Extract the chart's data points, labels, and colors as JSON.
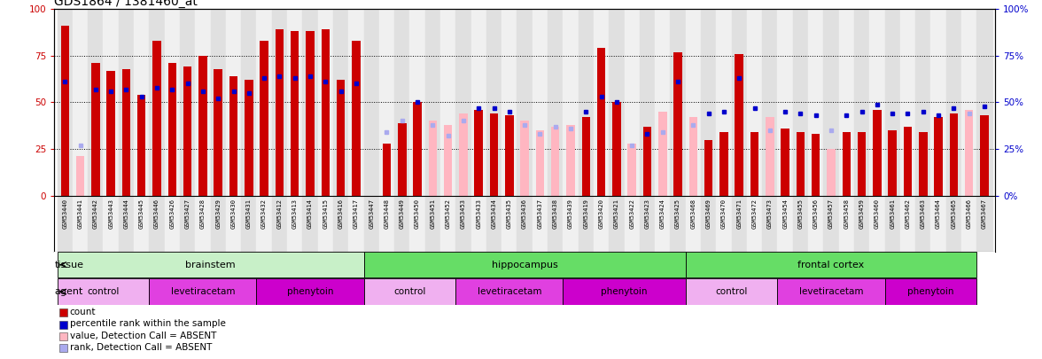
{
  "title": "GDS1864 / 1381460_at",
  "samples": [
    "GSM53440",
    "GSM53441",
    "GSM53442",
    "GSM53443",
    "GSM53444",
    "GSM53445",
    "GSM53446",
    "GSM53426",
    "GSM53427",
    "GSM53428",
    "GSM53429",
    "GSM53430",
    "GSM53431",
    "GSM53432",
    "GSM53412",
    "GSM53413",
    "GSM53414",
    "GSM53415",
    "GSM53416",
    "GSM53417",
    "GSM53447",
    "GSM53448",
    "GSM53449",
    "GSM53450",
    "GSM53451",
    "GSM53452",
    "GSM53453",
    "GSM53433",
    "GSM53434",
    "GSM53435",
    "GSM53436",
    "GSM53437",
    "GSM53438",
    "GSM53439",
    "GSM53419",
    "GSM53420",
    "GSM53421",
    "GSM53422",
    "GSM53423",
    "GSM53424",
    "GSM53425",
    "GSM53468",
    "GSM53469",
    "GSM53470",
    "GSM53471",
    "GSM53472",
    "GSM53473",
    "GSM53454",
    "GSM53455",
    "GSM53456",
    "GSM53457",
    "GSM53458",
    "GSM53459",
    "GSM53460",
    "GSM53461",
    "GSM53462",
    "GSM53463",
    "GSM53464",
    "GSM53465",
    "GSM53466",
    "GSM53467"
  ],
  "count_values": [
    91,
    0,
    71,
    67,
    68,
    54,
    83,
    71,
    69,
    75,
    68,
    64,
    62,
    83,
    89,
    88,
    88,
    89,
    62,
    83,
    0,
    28,
    39,
    50,
    0,
    0,
    0,
    46,
    44,
    43,
    0,
    0,
    0,
    0,
    42,
    79,
    50,
    0,
    37,
    0,
    77,
    0,
    30,
    34,
    76,
    34,
    0,
    36,
    34,
    33,
    0,
    34,
    34,
    46,
    35,
    37,
    34,
    42,
    44,
    0,
    43
  ],
  "count_absent": [
    false,
    true,
    false,
    false,
    false,
    false,
    false,
    false,
    false,
    false,
    false,
    false,
    false,
    false,
    false,
    false,
    false,
    false,
    false,
    false,
    true,
    false,
    false,
    false,
    true,
    true,
    true,
    false,
    false,
    false,
    true,
    true,
    true,
    true,
    false,
    false,
    false,
    true,
    false,
    true,
    false,
    true,
    false,
    false,
    false,
    false,
    true,
    false,
    false,
    false,
    true,
    false,
    false,
    false,
    false,
    false,
    false,
    false,
    false,
    true,
    false
  ],
  "absent_bar_values": [
    0,
    21,
    0,
    0,
    0,
    0,
    0,
    0,
    0,
    0,
    0,
    0,
    0,
    0,
    0,
    0,
    0,
    0,
    0,
    0,
    0,
    0,
    0,
    0,
    40,
    38,
    44,
    0,
    0,
    0,
    40,
    35,
    37,
    38,
    0,
    0,
    0,
    28,
    0,
    45,
    0,
    42,
    0,
    0,
    0,
    0,
    42,
    0,
    0,
    0,
    25,
    0,
    0,
    0,
    0,
    0,
    0,
    0,
    0,
    46,
    0
  ],
  "rank_values": [
    61,
    27,
    57,
    56,
    57,
    53,
    58,
    57,
    60,
    56,
    52,
    56,
    55,
    63,
    64,
    63,
    64,
    61,
    56,
    60,
    0,
    0,
    0,
    50,
    0,
    0,
    0,
    47,
    47,
    45,
    0,
    0,
    0,
    0,
    45,
    53,
    50,
    0,
    33,
    0,
    61,
    0,
    44,
    45,
    63,
    47,
    0,
    45,
    44,
    43,
    0,
    43,
    45,
    49,
    44,
    44,
    45,
    43,
    47,
    0,
    48
  ],
  "rank_absent": [
    false,
    true,
    false,
    false,
    false,
    false,
    false,
    false,
    false,
    false,
    false,
    false,
    false,
    false,
    false,
    false,
    false,
    false,
    false,
    false,
    true,
    true,
    true,
    false,
    true,
    true,
    true,
    false,
    false,
    false,
    true,
    true,
    true,
    true,
    false,
    false,
    false,
    true,
    false,
    true,
    false,
    true,
    false,
    false,
    false,
    false,
    true,
    false,
    false,
    false,
    true,
    false,
    false,
    false,
    false,
    false,
    false,
    false,
    false,
    true,
    false
  ],
  "absent_rank_values": [
    0,
    27,
    0,
    0,
    0,
    0,
    0,
    0,
    0,
    0,
    0,
    0,
    0,
    0,
    0,
    0,
    0,
    0,
    0,
    0,
    0,
    34,
    40,
    0,
    38,
    32,
    40,
    0,
    0,
    0,
    38,
    33,
    37,
    36,
    0,
    0,
    0,
    27,
    0,
    34,
    0,
    38,
    0,
    0,
    0,
    0,
    35,
    0,
    0,
    0,
    35,
    0,
    0,
    0,
    0,
    0,
    0,
    0,
    0,
    44,
    0
  ],
  "tissue_groups": [
    {
      "label": "brainstem",
      "start": 0,
      "end": 20,
      "color": "#c8f0c8"
    },
    {
      "label": "hippocampus",
      "start": 20,
      "end": 41,
      "color": "#66dd66"
    },
    {
      "label": "frontal cortex",
      "start": 41,
      "end": 60,
      "color": "#66dd66"
    }
  ],
  "agent_groups": [
    {
      "label": "control",
      "start": 0,
      "end": 6,
      "color": "#f0b0f0"
    },
    {
      "label": "levetiracetam",
      "start": 6,
      "end": 13,
      "color": "#e040e0"
    },
    {
      "label": "phenytoin",
      "start": 13,
      "end": 20,
      "color": "#cc00cc"
    },
    {
      "label": "control",
      "start": 20,
      "end": 26,
      "color": "#f0b0f0"
    },
    {
      "label": "levetiracetam",
      "start": 26,
      "end": 33,
      "color": "#e040e0"
    },
    {
      "label": "phenytoin",
      "start": 33,
      "end": 41,
      "color": "#cc00cc"
    },
    {
      "label": "control",
      "start": 41,
      "end": 47,
      "color": "#f0b0f0"
    },
    {
      "label": "levetiracetam",
      "start": 47,
      "end": 54,
      "color": "#e040e0"
    },
    {
      "label": "phenytoin",
      "start": 54,
      "end": 60,
      "color": "#cc00cc"
    }
  ],
  "ylim": [
    0,
    100
  ],
  "yticks": [
    0,
    25,
    50,
    75,
    100
  ],
  "bar_color": "#cc0000",
  "absent_bar_color": "#ffb6c1",
  "rank_color": "#0000cc",
  "absent_rank_color": "#aaaaee",
  "bg_color": "#ffffff",
  "col_bg_even": "#e0e0e0",
  "col_bg_odd": "#f0f0f0",
  "legend_items": [
    {
      "color": "#cc0000",
      "label": "count"
    },
    {
      "color": "#0000cc",
      "label": "percentile rank within the sample"
    },
    {
      "color": "#ffb6c1",
      "label": "value, Detection Call = ABSENT"
    },
    {
      "color": "#aaaaee",
      "label": "rank, Detection Call = ABSENT"
    }
  ]
}
